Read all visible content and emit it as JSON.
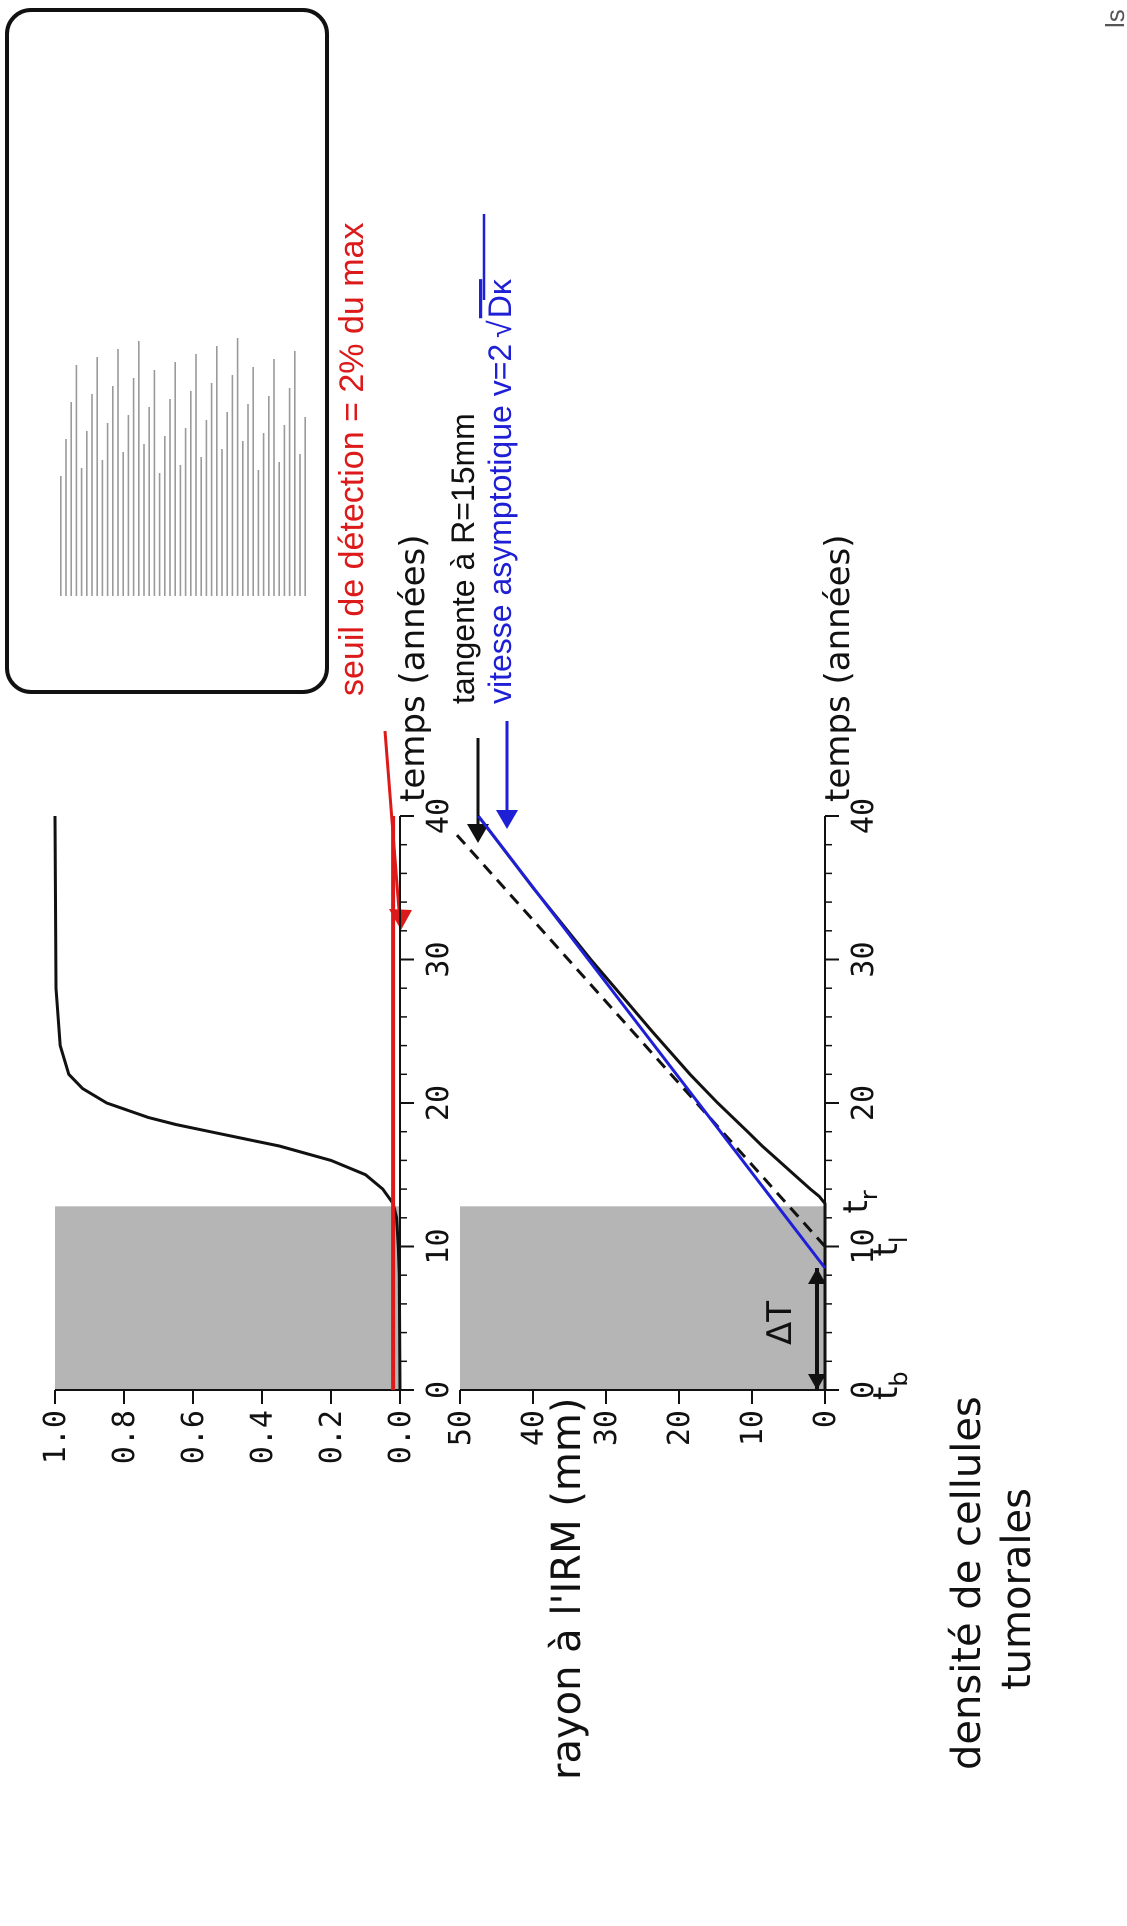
{
  "colors": {
    "accent_red": "#dd1a1a",
    "accent_blue": "#1f1fd6",
    "shade": "#b5b5b5",
    "ink": "#111111"
  },
  "annotations": {
    "threshold": "seuil de détection = 2% du max",
    "tangent": "tangente à R=15mm",
    "asymptotic_prefix": "vitesse asymptotique v=2",
    "asymptotic_sqrt": "Dκ",
    "delta_t": "ΔT",
    "tb": "t",
    "tb_sub": "b",
    "tl": "t",
    "tl_sub": "l",
    "tr": "t",
    "tr_sub": "r",
    "corner": "ls"
  },
  "chart_data": [
    {
      "type": "line",
      "xlabel": "temps (années)",
      "ylabel_lines": [
        "densité de cellules",
        "tumorales"
      ],
      "xlim": [
        0,
        40
      ],
      "ylim": [
        0,
        1.0
      ],
      "x_ticks": [
        "0",
        "10",
        "20",
        "30",
        "40"
      ],
      "y_ticks": [
        "0.0",
        "0.2",
        "0.4",
        "0.6",
        "0.8",
        "1.0"
      ],
      "shaded_region_x": [
        0,
        12.8
      ],
      "threshold": 0.02,
      "series": [
        {
          "color": "#111111",
          "points": [
            [
              0,
              0.0
            ],
            [
              8,
              0.002
            ],
            [
              10,
              0.005
            ],
            [
              12,
              0.01
            ],
            [
              13,
              0.02
            ],
            [
              14,
              0.05
            ],
            [
              15,
              0.1
            ],
            [
              16,
              0.2
            ],
            [
              17,
              0.35
            ],
            [
              17.5,
              0.45
            ],
            [
              18,
              0.55
            ],
            [
              18.5,
              0.65
            ],
            [
              19,
              0.73
            ],
            [
              20,
              0.85
            ],
            [
              21,
              0.92
            ],
            [
              22,
              0.96
            ],
            [
              24,
              0.985
            ],
            [
              28,
              0.997
            ],
            [
              40,
              1.0
            ]
          ]
        },
        {
          "color": "#dd1a1a",
          "points": [
            [
              0,
              0.02
            ],
            [
              40,
              0.02
            ]
          ]
        }
      ]
    },
    {
      "type": "line",
      "xlabel": "temps (années)",
      "ylabel": "rayon à l'IRM (mm)",
      "xlim": [
        0,
        40
      ],
      "ylim": [
        0,
        50
      ],
      "x_ticks": [
        "0",
        "10",
        "20",
        "30",
        "40"
      ],
      "y_ticks": [
        "0",
        "10",
        "20",
        "30",
        "40",
        "50"
      ],
      "shaded_region_x": [
        0,
        12.8
      ],
      "delta_t_range": [
        0,
        8.5
      ],
      "series": [
        {
          "color": "#111111",
          "points": [
            [
              0,
              0
            ],
            [
              13,
              0
            ],
            [
              13.5,
              0.8
            ],
            [
              14,
              2.0
            ],
            [
              15,
              4.2
            ],
            [
              16,
              6.4
            ],
            [
              17,
              8.6
            ],
            [
              18,
              10.6
            ],
            [
              20,
              14.7
            ],
            [
              22,
              18.5
            ],
            [
              25,
              23.7
            ],
            [
              30,
              32.1
            ],
            [
              35,
              40.0
            ],
            [
              40,
              47.5
            ]
          ]
        },
        {
          "color": "#111111",
          "dash": true,
          "points": [
            [
              10,
              0
            ],
            [
              39,
              51
            ]
          ]
        },
        {
          "color": "#1f1fd6",
          "points": [
            [
              8.5,
              0
            ],
            [
              40,
              47.5
            ]
          ]
        }
      ]
    }
  ]
}
